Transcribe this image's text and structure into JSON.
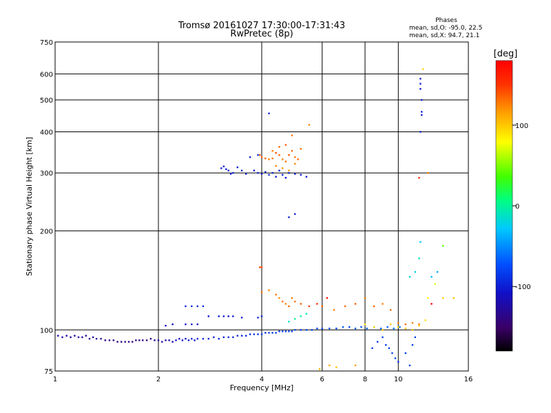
{
  "chart_data": {
    "type": "scatter",
    "title": "Tromsø 20161027 17:30:00-17:31:43",
    "subtitle": "RwPretec (8p)",
    "xlabel": "Frequency [MHz]",
    "ylabel": "Stationary phase Virtual Height [km]",
    "x_scale": "log",
    "y_scale": "log",
    "xlim": [
      1,
      16
    ],
    "ylim": [
      75,
      750
    ],
    "x_ticks": [
      1,
      2,
      4,
      6,
      8,
      10,
      16
    ],
    "y_ticks": [
      75,
      100,
      200,
      300,
      400,
      500,
      600,
      750
    ],
    "grid": true,
    "stats": {
      "header": "Phases",
      "line_o": "mean, sd,O: -95.0, 22.5",
      "line_x": "mean, sd,X:  94.7, 21.1"
    },
    "colorbar": {
      "label": "[deg]",
      "range": [
        -180,
        180
      ],
      "ticks": [
        100,
        0,
        -100
      ],
      "colors": [
        "#000000",
        "#3a0066",
        "#1010c8",
        "#0050ff",
        "#00c8ff",
        "#00ff80",
        "#40ff00",
        "#ffff00",
        "#ffa000",
        "#ff3000",
        "#ff0000"
      ]
    },
    "series": [
      {
        "points": [
          [
            1.02,
            96,
            -118
          ],
          [
            1.05,
            95,
            -120
          ],
          [
            1.08,
            96,
            -116
          ],
          [
            1.11,
            95,
            -122
          ],
          [
            1.14,
            96,
            -119
          ],
          [
            1.17,
            95,
            -124
          ],
          [
            1.2,
            95,
            -121
          ],
          [
            1.23,
            96,
            -126
          ],
          [
            1.26,
            94,
            -123
          ],
          [
            1.29,
            95,
            -128
          ],
          [
            1.32,
            94,
            -125
          ],
          [
            1.36,
            94,
            -130
          ],
          [
            1.4,
            93,
            -128
          ],
          [
            1.44,
            93,
            -133
          ],
          [
            1.48,
            93,
            -130
          ],
          [
            1.52,
            92,
            -135
          ],
          [
            1.56,
            92,
            -132
          ],
          [
            1.6,
            92,
            -136
          ],
          [
            1.64,
            92,
            -134
          ],
          [
            1.68,
            92,
            -138
          ],
          [
            1.72,
            93,
            -135
          ],
          [
            1.76,
            93,
            -137
          ],
          [
            1.8,
            93,
            -134
          ],
          [
            1.85,
            93,
            -136
          ],
          [
            1.9,
            94,
            -132
          ],
          [
            1.95,
            93,
            -130
          ],
          [
            2.0,
            93,
            -128
          ],
          [
            2.05,
            92,
            -125
          ],
          [
            2.1,
            93,
            -122
          ],
          [
            2.15,
            93,
            -118
          ],
          [
            2.2,
            92,
            -115
          ],
          [
            2.25,
            93,
            -112
          ],
          [
            2.3,
            94,
            -110
          ],
          [
            2.35,
            93,
            -105
          ],
          [
            2.4,
            94,
            -108
          ],
          [
            2.45,
            93,
            -102
          ],
          [
            2.5,
            94,
            -100
          ],
          [
            2.55,
            93,
            -104
          ],
          [
            2.6,
            94,
            -98
          ],
          [
            2.7,
            94,
            -101
          ],
          [
            2.8,
            94,
            -97
          ],
          [
            2.9,
            95,
            -99
          ],
          [
            3.0,
            94,
            -96
          ],
          [
            3.1,
            95,
            -100
          ],
          [
            3.2,
            95,
            -95
          ],
          [
            3.3,
            95,
            -98
          ],
          [
            3.4,
            96,
            -94
          ],
          [
            3.5,
            96,
            -97
          ],
          [
            3.6,
            96,
            -92
          ],
          [
            3.7,
            97,
            -95
          ],
          [
            3.8,
            97,
            -90
          ],
          [
            3.9,
            97,
            -93
          ],
          [
            4.0,
            97,
            -88
          ],
          [
            4.1,
            98,
            -91
          ],
          [
            4.2,
            98,
            -86
          ],
          [
            4.3,
            98,
            -89
          ],
          [
            4.4,
            98,
            -84
          ],
          [
            4.5,
            99,
            -87
          ],
          [
            4.6,
            99,
            -82
          ],
          [
            4.7,
            99,
            -85
          ],
          [
            4.8,
            99,
            -80
          ],
          [
            4.9,
            99,
            -83
          ],
          [
            5.0,
            100,
            -78
          ],
          [
            5.2,
            100,
            -81
          ],
          [
            5.4,
            100,
            -76
          ],
          [
            5.6,
            100,
            -79
          ],
          [
            5.8,
            101,
            -74
          ],
          [
            6.0,
            101,
            -77
          ],
          [
            6.3,
            101,
            -72
          ],
          [
            6.6,
            101,
            -75
          ],
          [
            6.9,
            102,
            -70
          ],
          [
            7.2,
            102,
            -73
          ],
          [
            7.5,
            101,
            -68
          ],
          [
            7.8,
            102,
            -71
          ],
          [
            8.1,
            101,
            -66
          ],
          [
            8.5,
            102,
            -69
          ],
          [
            8.9,
            101,
            -64
          ],
          [
            9.3,
            102,
            -67
          ],
          [
            9.7,
            101,
            -62
          ],
          [
            10.1,
            102,
            -65
          ],
          [
            2.1,
            103,
            -112
          ],
          [
            2.2,
            104,
            -110
          ],
          [
            2.4,
            104,
            -108
          ],
          [
            2.5,
            104,
            -106
          ],
          [
            2.6,
            104,
            -104
          ],
          [
            2.4,
            118,
            -98
          ],
          [
            2.5,
            118,
            -96
          ],
          [
            2.6,
            118,
            -95
          ],
          [
            2.7,
            118,
            -94
          ],
          [
            2.8,
            110,
            -105
          ],
          [
            3.0,
            110,
            -103
          ],
          [
            3.1,
            110,
            -101
          ],
          [
            3.2,
            110,
            -104
          ],
          [
            3.3,
            110,
            -102
          ],
          [
            3.5,
            109,
            -103
          ],
          [
            3.9,
            109,
            -100
          ],
          [
            4.0,
            110,
            -98
          ],
          [
            3.05,
            310,
            -100
          ],
          [
            3.1,
            314,
            -98
          ],
          [
            3.15,
            308,
            -102
          ],
          [
            3.2,
            305,
            -99
          ],
          [
            3.25,
            298,
            -101
          ],
          [
            3.3,
            300,
            -97
          ],
          [
            3.4,
            312,
            -103
          ],
          [
            3.5,
            305,
            -100
          ],
          [
            3.6,
            298,
            -98
          ],
          [
            3.8,
            305,
            -101
          ],
          [
            3.9,
            300,
            -99
          ],
          [
            4.0,
            298,
            -102
          ],
          [
            4.1,
            302,
            -100
          ],
          [
            4.2,
            296,
            -98
          ],
          [
            4.3,
            300,
            -101
          ],
          [
            4.4,
            292,
            -99
          ],
          [
            4.5,
            305,
            -97
          ],
          [
            4.6,
            296,
            -100
          ],
          [
            4.7,
            290,
            -102
          ],
          [
            4.8,
            300,
            -98
          ],
          [
            5.0,
            298,
            -101
          ],
          [
            5.2,
            296,
            -99
          ],
          [
            5.4,
            292,
            -100
          ],
          [
            3.7,
            335,
            -96
          ],
          [
            3.9,
            340,
            -94
          ],
          [
            4.2,
            455,
            -97
          ],
          [
            4.8,
            220,
            -99
          ],
          [
            5.0,
            225,
            -100
          ],
          [
            11.6,
            580,
            -100
          ],
          [
            11.6,
            560,
            -98
          ],
          [
            11.6,
            540,
            -101
          ],
          [
            11.7,
            500,
            -97
          ],
          [
            11.7,
            460,
            -99
          ],
          [
            11.7,
            450,
            -102
          ],
          [
            11.6,
            400,
            -100
          ],
          [
            9.0,
            95,
            -80
          ],
          [
            9.2,
            90,
            -82
          ],
          [
            9.4,
            88,
            -78
          ],
          [
            9.6,
            85,
            -81
          ],
          [
            9.8,
            82,
            -79
          ],
          [
            10.0,
            80,
            -83
          ],
          [
            10.5,
            85,
            -80
          ],
          [
            11.0,
            90,
            -82
          ],
          [
            11.2,
            95,
            -79
          ],
          [
            10.8,
            78,
            -81
          ],
          [
            8.7,
            92,
            -85
          ],
          [
            8.4,
            88,
            -83
          ],
          [
            3.95,
            340,
            130
          ],
          [
            4.0,
            335,
            125
          ],
          [
            4.1,
            332,
            128
          ],
          [
            4.2,
            330,
            120
          ],
          [
            4.3,
            332,
            122
          ],
          [
            4.4,
            345,
            135
          ],
          [
            4.5,
            340,
            128
          ],
          [
            4.6,
            330,
            118
          ],
          [
            4.7,
            325,
            124
          ],
          [
            4.8,
            340,
            132
          ],
          [
            4.9,
            350,
            126
          ],
          [
            5.0,
            335,
            121
          ],
          [
            5.1,
            330,
            127
          ],
          [
            4.4,
            315,
            118
          ],
          [
            4.6,
            310,
            110
          ],
          [
            4.8,
            305,
            112
          ],
          [
            5.0,
            320,
            115
          ],
          [
            4.3,
            350,
            120
          ],
          [
            4.5,
            360,
            126
          ],
          [
            4.7,
            365,
            130
          ],
          [
            5.2,
            355,
            124
          ],
          [
            5.5,
            420,
            118
          ],
          [
            4.9,
            390,
            122
          ],
          [
            3.95,
            155,
            135
          ],
          [
            4.0,
            155,
            138
          ],
          [
            4.0,
            130,
            120
          ],
          [
            4.2,
            132,
            118
          ],
          [
            4.4,
            128,
            122
          ],
          [
            4.5,
            125,
            115
          ],
          [
            4.6,
            122,
            125
          ],
          [
            4.7,
            120,
            118
          ],
          [
            4.8,
            118,
            128
          ],
          [
            4.9,
            125,
            120
          ],
          [
            5.0,
            122,
            124
          ],
          [
            5.2,
            120,
            130
          ],
          [
            5.5,
            118,
            140
          ],
          [
            5.8,
            120,
            150
          ],
          [
            6.0,
            118,
            130
          ],
          [
            6.5,
            115,
            120
          ],
          [
            7.0,
            118,
            125
          ],
          [
            7.5,
            120,
            130
          ],
          [
            8.0,
            125,
            122
          ],
          [
            8.5,
            118,
            128
          ],
          [
            9.0,
            120,
            118
          ],
          [
            9.5,
            115,
            124
          ],
          [
            10.0,
            105,
            120
          ],
          [
            10.5,
            104,
            125
          ],
          [
            11.0,
            105,
            118
          ],
          [
            11.5,
            104,
            122
          ],
          [
            5.2,
            110,
            -10
          ],
          [
            5.4,
            112,
            -15
          ],
          [
            5.0,
            108,
            -5
          ],
          [
            4.8,
            106,
            -20
          ],
          [
            10.8,
            145,
            -25
          ],
          [
            11.2,
            150,
            -30
          ],
          [
            11.5,
            165,
            -20
          ],
          [
            11.6,
            185,
            -35
          ],
          [
            12.5,
            145,
            -40
          ],
          [
            13.0,
            150,
            -45
          ],
          [
            8.0,
            104,
            80
          ],
          [
            8.5,
            102,
            85
          ],
          [
            9.0,
            100,
            90
          ],
          [
            9.5,
            104,
            95
          ],
          [
            10.0,
            102,
            88
          ],
          [
            10.5,
            101,
            92
          ],
          [
            11.0,
            100,
            96
          ],
          [
            11.5,
            103,
            90
          ],
          [
            12.0,
            107,
            85
          ],
          [
            12.2,
            125,
            70
          ],
          [
            12.8,
            138,
            65
          ],
          [
            13.5,
            125,
            90
          ],
          [
            14.5,
            125,
            95
          ],
          [
            5.9,
            76,
            100
          ],
          [
            6.3,
            78,
            105
          ],
          [
            6.6,
            77,
            95
          ],
          [
            7.5,
            78,
            110
          ],
          [
            11.5,
            290,
            150
          ],
          [
            11.8,
            620,
            90
          ],
          [
            13.5,
            180,
            40
          ],
          [
            12.2,
            300,
            120
          ],
          [
            6.2,
            125,
            170
          ],
          [
            12.5,
            120,
            175
          ]
        ]
      }
    ]
  }
}
